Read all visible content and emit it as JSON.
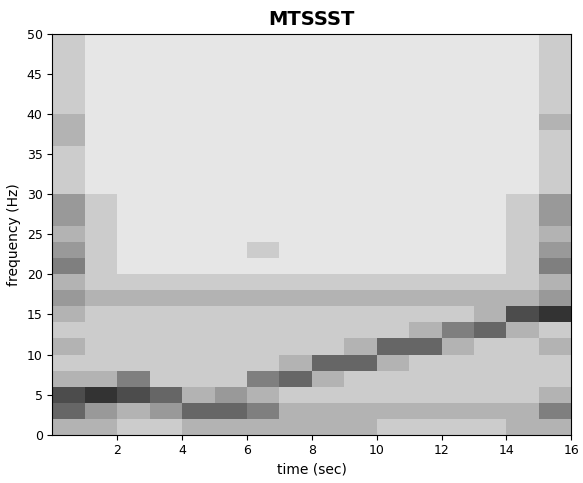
{
  "chart_data": {
    "type": "heatmap",
    "title": "MTSSST",
    "x_label": "time (sec)",
    "y_label": "frequency (Hz)",
    "xlim": [
      0,
      16
    ],
    "xticks": [
      2,
      4,
      6,
      8,
      10,
      12,
      14,
      16
    ],
    "ylim": [
      0,
      50
    ],
    "yticks": [
      0,
      5,
      10,
      15,
      20,
      25,
      30,
      35,
      40,
      45,
      50
    ],
    "x_edges": [
      0,
      1,
      2,
      3,
      4,
      5,
      6,
      7,
      8,
      9,
      10,
      11,
      12,
      13,
      14,
      15,
      16
    ],
    "y_edges": [
      0,
      2,
      4,
      6,
      8,
      10,
      12,
      14,
      16,
      18,
      20,
      22,
      24,
      26,
      28,
      30,
      32,
      34,
      36,
      38,
      40,
      42,
      44,
      46,
      48,
      50
    ],
    "value_range": [
      0,
      10
    ],
    "cells": [
      [
        3,
        3,
        2,
        2,
        3,
        3,
        3,
        3,
        3,
        3,
        2,
        2,
        2,
        2,
        3,
        3
      ],
      [
        6,
        4,
        3,
        4,
        6,
        6,
        5,
        3,
        3,
        3,
        3,
        3,
        3,
        3,
        3,
        5
      ],
      [
        7,
        8,
        7,
        6,
        3,
        4,
        3,
        2,
        2,
        2,
        2,
        2,
        2,
        2,
        2,
        3
      ],
      [
        3,
        3,
        5,
        2,
        2,
        2,
        5,
        6,
        3,
        2,
        2,
        2,
        2,
        2,
        2,
        2
      ],
      [
        2,
        2,
        2,
        2,
        2,
        2,
        2,
        3,
        6,
        6,
        3,
        2,
        2,
        2,
        2,
        2
      ],
      [
        3,
        2,
        2,
        2,
        2,
        2,
        2,
        2,
        2,
        3,
        6,
        6,
        3,
        2,
        2,
        3
      ],
      [
        2,
        2,
        2,
        2,
        2,
        2,
        2,
        2,
        2,
        2,
        2,
        3,
        5,
        6,
        3,
        2
      ],
      [
        3,
        2,
        2,
        2,
        2,
        2,
        2,
        2,
        2,
        2,
        2,
        2,
        2,
        3,
        7,
        8
      ],
      [
        4,
        3,
        3,
        3,
        3,
        3,
        3,
        3,
        3,
        3,
        3,
        3,
        3,
        3,
        3,
        4
      ],
      [
        3,
        2,
        2,
        2,
        2,
        2,
        2,
        2,
        2,
        2,
        2,
        2,
        2,
        2,
        2,
        3
      ],
      [
        5,
        2,
        1,
        1,
        1,
        1,
        1,
        1,
        1,
        1,
        1,
        1,
        1,
        1,
        2,
        5
      ],
      [
        4,
        2,
        1,
        1,
        1,
        1,
        2,
        1,
        1,
        1,
        1,
        1,
        1,
        1,
        2,
        4
      ],
      [
        3,
        2,
        1,
        1,
        1,
        1,
        1,
        1,
        1,
        1,
        1,
        1,
        1,
        1,
        2,
        3
      ],
      [
        4,
        2,
        1,
        1,
        1,
        1,
        1,
        1,
        1,
        1,
        1,
        1,
        1,
        1,
        2,
        4
      ],
      [
        4,
        2,
        1,
        1,
        1,
        1,
        1,
        1,
        1,
        1,
        1,
        1,
        1,
        1,
        2,
        4
      ],
      [
        2,
        1,
        1,
        1,
        1,
        1,
        1,
        1,
        1,
        1,
        1,
        1,
        1,
        1,
        1,
        2
      ],
      [
        2,
        1,
        1,
        1,
        1,
        1,
        1,
        1,
        1,
        1,
        1,
        1,
        1,
        1,
        1,
        2
      ],
      [
        2,
        1,
        1,
        1,
        1,
        1,
        1,
        1,
        1,
        1,
        1,
        1,
        1,
        1,
        1,
        2
      ],
      [
        3,
        1,
        1,
        1,
        1,
        1,
        1,
        1,
        1,
        1,
        1,
        1,
        1,
        1,
        1,
        2
      ],
      [
        3,
        1,
        1,
        1,
        1,
        1,
        1,
        1,
        1,
        1,
        1,
        1,
        1,
        1,
        1,
        3
      ],
      [
        2,
        1,
        1,
        1,
        1,
        1,
        1,
        1,
        1,
        1,
        1,
        1,
        1,
        1,
        1,
        2
      ],
      [
        2,
        1,
        1,
        1,
        1,
        1,
        1,
        1,
        1,
        1,
        1,
        1,
        1,
        1,
        1,
        2
      ],
      [
        2,
        1,
        1,
        1,
        1,
        1,
        1,
        1,
        1,
        1,
        1,
        1,
        1,
        1,
        1,
        2
      ],
      [
        2,
        1,
        1,
        1,
        1,
        1,
        1,
        1,
        1,
        1,
        1,
        1,
        1,
        1,
        1,
        2
      ],
      [
        2,
        1,
        1,
        1,
        1,
        1,
        1,
        1,
        1,
        1,
        1,
        1,
        1,
        1,
        1,
        2
      ]
    ]
  }
}
